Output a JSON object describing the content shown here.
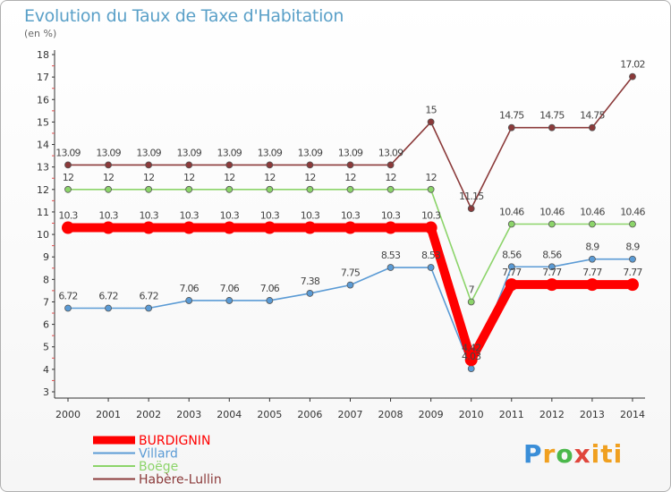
{
  "title": "Evolution du Taux de Taxe d'Habitation",
  "subtitle": "(en %)",
  "logo": "Proxiti",
  "chart_data": {
    "type": "line",
    "title": "Evolution du Taux de Taxe d'Habitation",
    "ylabel": "(en %)",
    "xlabel": "",
    "x": [
      "2000",
      "2001",
      "2002",
      "2003",
      "2004",
      "2005",
      "2006",
      "2007",
      "2008",
      "2009",
      "2010",
      "2011",
      "2012",
      "2013",
      "2014"
    ],
    "ylim": [
      3,
      18
    ],
    "yticks": [
      3,
      4,
      5,
      6,
      7,
      8,
      9,
      10,
      11,
      12,
      13,
      14,
      15,
      16,
      17,
      18
    ],
    "grid": false,
    "legend": "bottom-left",
    "series": [
      {
        "name": "BURDIGNIN",
        "color": "#ff0000",
        "values": [
          10.3,
          10.3,
          10.3,
          10.3,
          10.3,
          10.3,
          10.3,
          10.3,
          10.3,
          10.3,
          4.42,
          7.77,
          7.77,
          7.77,
          7.77
        ],
        "labels": [
          "10.3",
          "10.3",
          "10.3",
          "10.3",
          "10.3",
          "10.3",
          "10.3",
          "10.3",
          "10.3",
          "10.3",
          "4.42",
          "7.77",
          "7.77",
          "7.77",
          "7.77"
        ]
      },
      {
        "name": "Villard",
        "color": "#5b9bd5",
        "values": [
          6.72,
          6.72,
          6.72,
          7.06,
          7.06,
          7.06,
          7.38,
          7.75,
          8.53,
          8.53,
          4.03,
          8.56,
          8.56,
          8.9,
          8.9
        ],
        "labels": [
          "6.72",
          "6.72",
          "6.72",
          "7.06",
          "7.06",
          "7.06",
          "7.38",
          "7.75",
          "8.53",
          "8.53",
          "4.03",
          "8.56",
          "8.56",
          "8.9",
          "8.9"
        ]
      },
      {
        "name": "Boëge",
        "color": "#8cd46a",
        "values": [
          12,
          12,
          12,
          12,
          12,
          12,
          12,
          12,
          12,
          12,
          7,
          10.46,
          10.46,
          10.46,
          10.46
        ],
        "labels": [
          "12",
          "12",
          "12",
          "12",
          "12",
          "12",
          "12",
          "12",
          "12",
          "12",
          "7",
          "10.46",
          "10.46",
          "10.46",
          "10.46"
        ]
      },
      {
        "name": "Habère-Lullin",
        "color": "#8b3a3a",
        "values": [
          13.09,
          13.09,
          13.09,
          13.09,
          13.09,
          13.09,
          13.09,
          13.09,
          13.09,
          15,
          11.15,
          14.75,
          14.75,
          14.75,
          17.02
        ],
        "labels": [
          "13.09",
          "13.09",
          "13.09",
          "13.09",
          "13.09",
          "13.09",
          "13.09",
          "13.09",
          "13.09",
          "15",
          "11.15",
          "14.75",
          "14.75",
          "14.75",
          "17.02"
        ]
      }
    ]
  }
}
